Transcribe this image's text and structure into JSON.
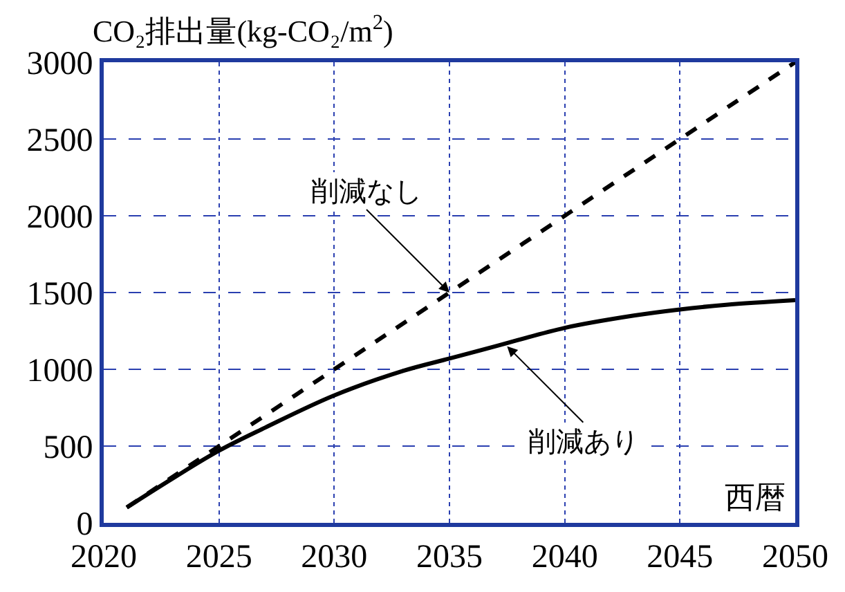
{
  "chart_data": {
    "type": "line",
    "ylabel": "CO₂排出量(kg-CO₂/m$^{2}$)",
    "xlabel": "西暦",
    "series": [
      {
        "color": "#000000",
        "line_style": "dashed",
        "x": [
          2021,
          2025,
          2030,
          2035,
          2040,
          2045,
          2050
        ],
        "values": [
          100,
          500,
          1000,
          1500,
          2000,
          2500,
          3000
        ]
      },
      {
        "color": "#000000",
        "line_style": "solid",
        "x": [
          2021,
          2023,
          2025,
          2027,
          2030,
          2033,
          2035,
          2037,
          2040,
          2043,
          2045,
          2047,
          2050
        ],
        "values": [
          100,
          290,
          470,
          620,
          830,
          990,
          1070,
          1150,
          1270,
          1350,
          1390,
          1420,
          1450
        ]
      }
    ],
    "annotations": [
      {
        "text": "削減なし",
        "x": 2035,
        "y": 1500
      },
      {
        "text": "削減あり",
        "x": 2037.5,
        "y": 1150
      }
    ],
    "xlim": [
      2020,
      2050
    ],
    "xticks": [
      2020,
      2025,
      2030,
      2035,
      2040,
      2045,
      2050
    ],
    "ylim": [
      0,
      3000
    ],
    "yticks": [
      0,
      500,
      1000,
      1500,
      2000,
      2500,
      3000
    ],
    "grid": true,
    "marker": "none"
  }
}
